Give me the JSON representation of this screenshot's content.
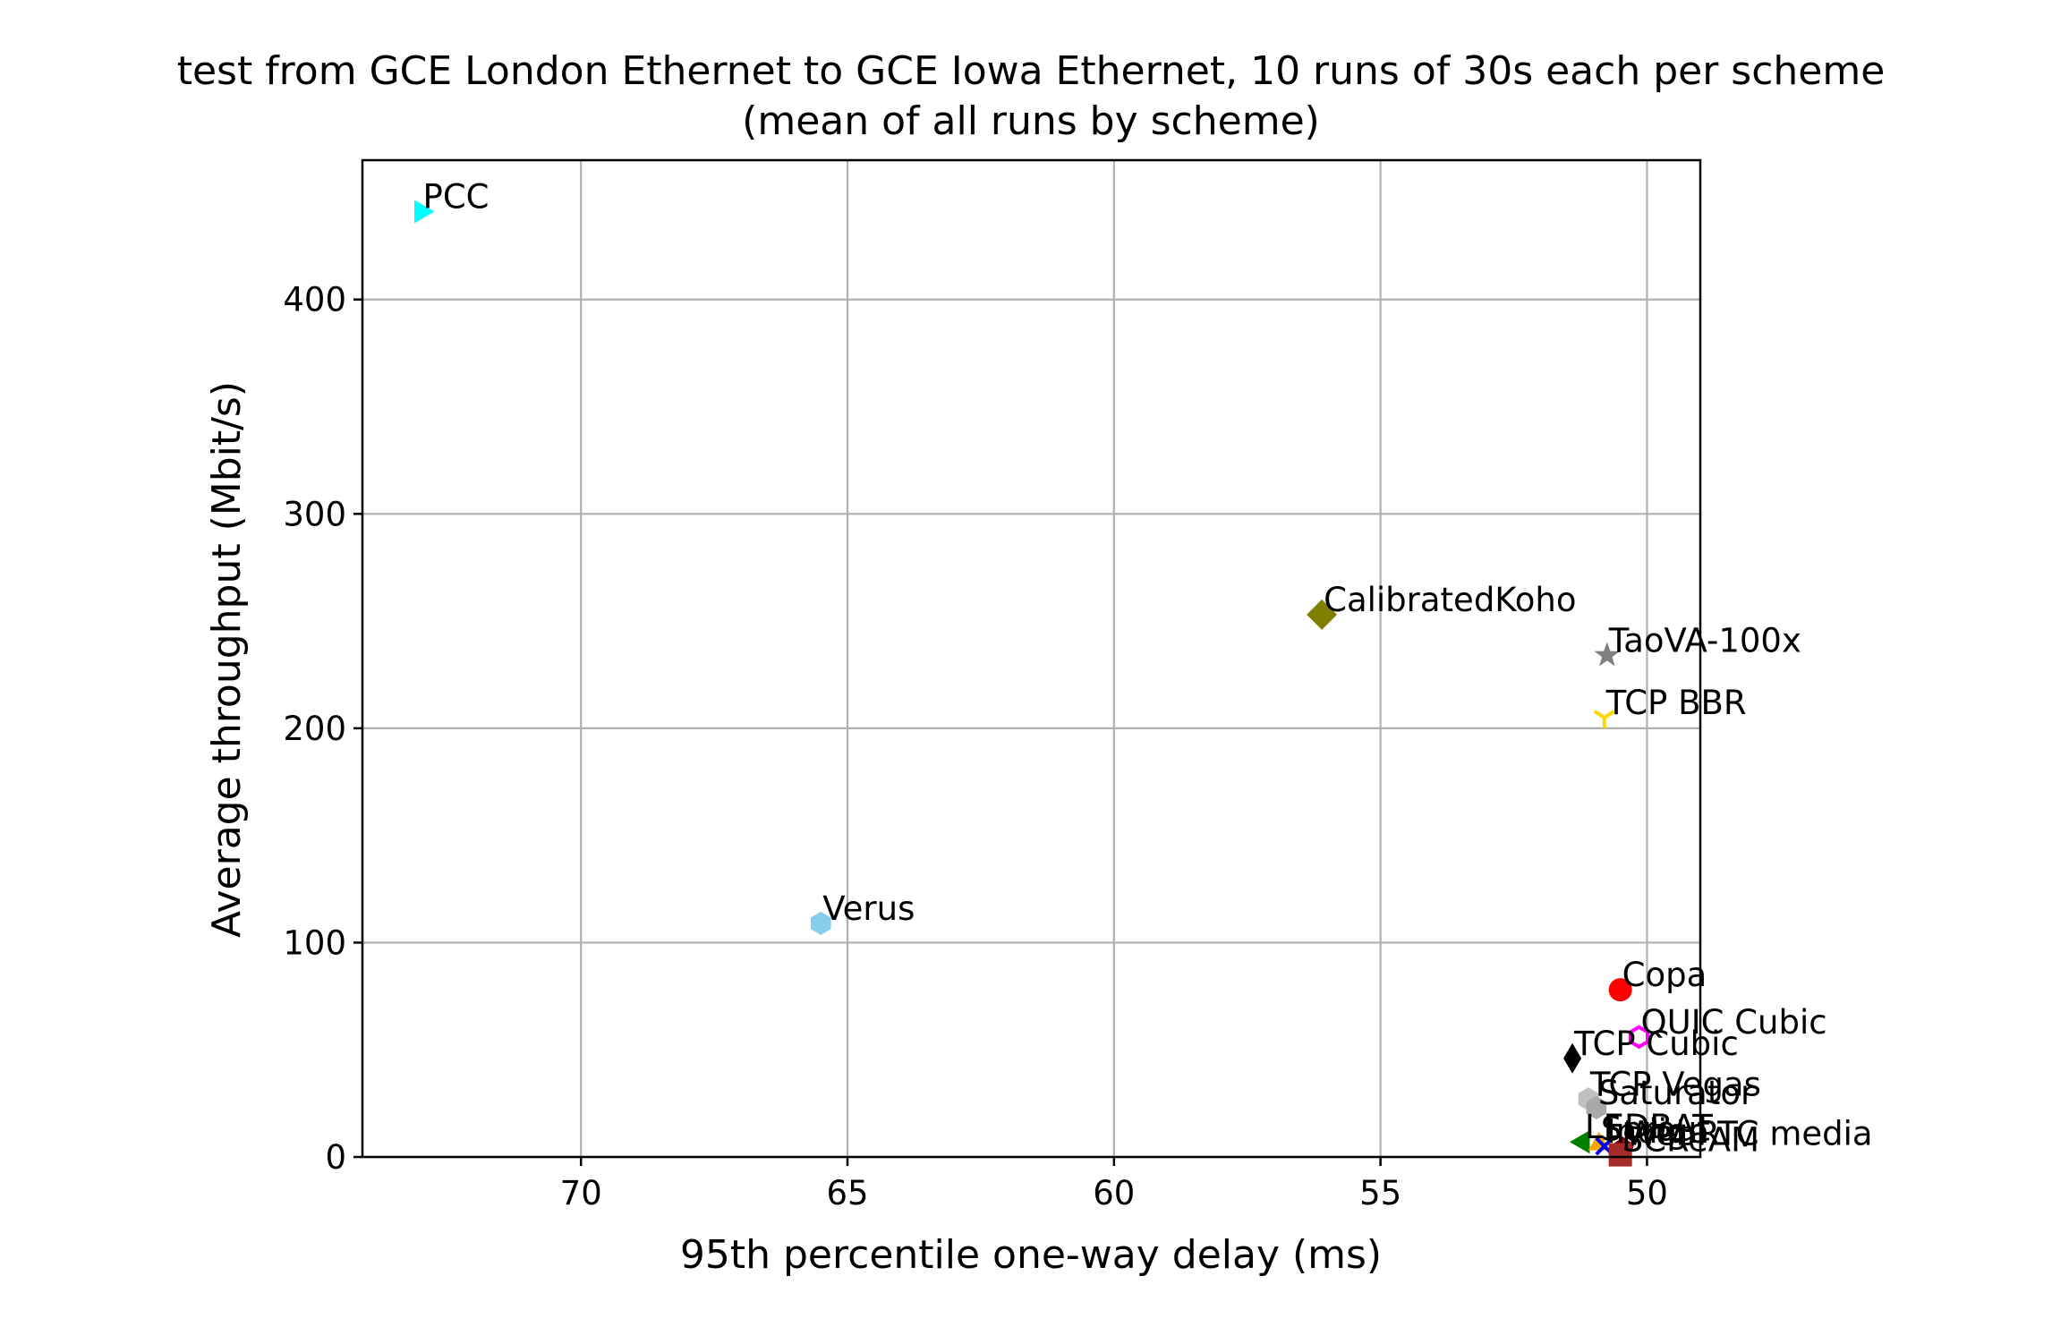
{
  "chart_data": {
    "type": "scatter",
    "title": "test from GCE London Ethernet to GCE Iowa Ethernet, 10 runs of 30s each per scheme",
    "subtitle": "(mean of all runs by scheme)",
    "xlabel": "95th percentile one-way delay (ms)",
    "ylabel": "Average throughput (Mbit/s)",
    "xlim": [
      74.1,
      49.0
    ],
    "ylim": [
      0,
      465
    ],
    "x_inverted": true,
    "grid": true,
    "xticks": [
      70,
      65,
      60,
      55,
      50
    ],
    "yticks": [
      0,
      100,
      200,
      300,
      400
    ],
    "points": [
      {
        "name": "PCC",
        "x": 73.0,
        "y": 441,
        "color": "#00ffff",
        "marker": "triangle-right"
      },
      {
        "name": "CalibratedKoho",
        "x": 56.1,
        "y": 253,
        "color": "#808000",
        "marker": "diamond"
      },
      {
        "name": "TaoVA-100x",
        "x": 50.75,
        "y": 234,
        "color": "#808080",
        "marker": "star"
      },
      {
        "name": "TCP BBR",
        "x": 50.8,
        "y": 205,
        "color": "#ffd700",
        "marker": "tri-down"
      },
      {
        "name": "Verus",
        "x": 65.5,
        "y": 109,
        "color": "#87ceeb",
        "marker": "hexagon"
      },
      {
        "name": "Copa",
        "x": 50.5,
        "y": 78,
        "color": "#ff0000",
        "marker": "circle"
      },
      {
        "name": "QUIC Cubic",
        "x": 50.15,
        "y": 56,
        "color": "#ff00ff",
        "marker": "hexagon-open"
      },
      {
        "name": "TCP Cubic",
        "x": 51.4,
        "y": 46,
        "color": "#000000",
        "marker": "thin-diamond"
      },
      {
        "name": "TCP Vegas",
        "x": 51.1,
        "y": 27,
        "color": "#c0c0c0",
        "marker": "hexagon"
      },
      {
        "name": "Saturator",
        "x": 50.95,
        "y": 23,
        "color": "#a9a9a9",
        "marker": "hexagon"
      },
      {
        "name": "LEDBAT",
        "x": 51.2,
        "y": 7,
        "color": "#008000",
        "marker": "triangle-left"
      },
      {
        "name": "Sprout",
        "x": 50.9,
        "y": 6,
        "color": "#ffa500",
        "marker": "triangle-up"
      },
      {
        "name": "Indigo",
        "x": 50.8,
        "y": 5,
        "color": "#0000ff",
        "marker": "x"
      },
      {
        "name": "WebRTC media",
        "x": 50.45,
        "y": 4,
        "color": "#8b0000",
        "marker": "pentagon"
      },
      {
        "name": "SCReAM",
        "x": 50.5,
        "y": 1,
        "color": "#a52a2a",
        "marker": "square"
      }
    ]
  }
}
